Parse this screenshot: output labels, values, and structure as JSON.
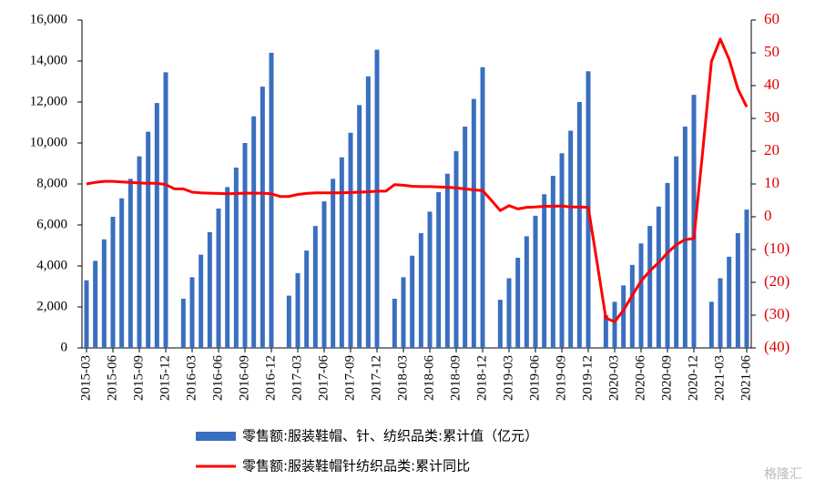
{
  "chart_data": {
    "type": "bar_line",
    "categories": [
      "2015-03",
      null,
      null,
      "2015-06",
      null,
      null,
      "2015-09",
      null,
      null,
      "2015-12",
      null,
      null,
      "2016-03",
      null,
      null,
      "2016-06",
      null,
      null,
      "2016-09",
      null,
      null,
      "2016-12",
      null,
      null,
      "2017-03",
      null,
      null,
      "2017-06",
      null,
      null,
      "2017-09",
      null,
      null,
      "2017-12",
      null,
      null,
      "2018-03",
      null,
      null,
      "2018-06",
      null,
      null,
      "2018-09",
      null,
      null,
      "2018-12",
      null,
      null,
      "2019-03",
      null,
      null,
      "2019-06",
      null,
      null,
      "2019-09",
      null,
      null,
      "2019-12",
      null,
      null,
      "2020-03",
      null,
      null,
      "2020-06",
      null,
      null,
      "2020-09",
      null,
      null,
      "2020-12",
      null,
      null,
      "2021-03",
      null,
      null,
      "2021-06"
    ],
    "series": [
      {
        "name": "零售额:服装鞋帽、针、纺织品类:累计值（亿元）",
        "color": "#3a6fc0",
        "kind": "bar",
        "values": [
          3300,
          4250,
          5300,
          6400,
          7300,
          8250,
          9350,
          10550,
          11950,
          13450,
          null,
          2400,
          3450,
          4550,
          5650,
          6800,
          7850,
          8800,
          10000,
          11300,
          12750,
          14400,
          null,
          2550,
          3650,
          4750,
          5950,
          7150,
          8250,
          9300,
          10500,
          11850,
          13250,
          14550,
          null,
          2400,
          3450,
          4500,
          5600,
          6650,
          7600,
          8500,
          9600,
          10800,
          12150,
          13700,
          null,
          2350,
          3400,
          4400,
          5450,
          6450,
          7500,
          8400,
          9500,
          10600,
          12000,
          13500,
          null,
          1600,
          2250,
          3050,
          4050,
          5100,
          5950,
          6900,
          8050,
          9350,
          10800,
          12350,
          null,
          2250,
          3400,
          4450,
          5600,
          6750
        ]
      },
      {
        "name": "零售额:服装鞋帽针纺织品类:累计同比",
        "color": "#ff0000",
        "kind": "line",
        "axis": "y2",
        "values": [
          10,
          10.5,
          10.8,
          10.8,
          10.6,
          10.5,
          10.3,
          10.2,
          10.2,
          9.8,
          8.5,
          8.5,
          7.5,
          7.3,
          7.2,
          7.1,
          7.0,
          7.1,
          7.2,
          7.2,
          7.2,
          7.0,
          6.2,
          6.2,
          6.8,
          7.1,
          7.3,
          7.3,
          7.3,
          7.3,
          7.4,
          7.5,
          7.6,
          7.8,
          7.8,
          9.8,
          9.6,
          9.3,
          9.2,
          9.2,
          9.1,
          9.0,
          8.8,
          8.5,
          8.2,
          8.0,
          5.0,
          1.9,
          3.4,
          2.4,
          2.9,
          3.0,
          3.2,
          3.2,
          3.3,
          3.0,
          3.0,
          2.9,
          -14,
          -30.9,
          -32.0,
          -28.5,
          -24.0,
          -19.6,
          -16.5,
          -14.0,
          -11.0,
          -8.5,
          -7.0,
          -6.6,
          20,
          47.4,
          54.2,
          48,
          39,
          33.5
        ]
      }
    ],
    "ylim": [
      0,
      16000
    ],
    "yticks": [
      0,
      {
        "value": 2000,
        "label": "2,000"
      },
      {
        "value": 4000,
        "label": "4,000"
      },
      {
        "value": 6000,
        "label": "6,000"
      },
      {
        "value": 8000,
        "label": "8,000"
      },
      {
        "value": 10000,
        "label": "10,000"
      },
      {
        "value": 12000,
        "label": "12,000"
      },
      {
        "value": 14000,
        "label": "14,000"
      },
      {
        "value": 16000,
        "label": "16,000"
      }
    ],
    "y2lim": [
      -40,
      60
    ],
    "y2ticks": [
      {
        "value": -40,
        "label": "(40)"
      },
      {
        "value": -30,
        "label": "(30)"
      },
      {
        "value": -20,
        "label": "(20)"
      },
      {
        "value": -10,
        "label": "(10)"
      },
      0,
      10,
      20,
      30,
      40,
      50,
      60
    ],
    "watermark": "格隆汇"
  }
}
